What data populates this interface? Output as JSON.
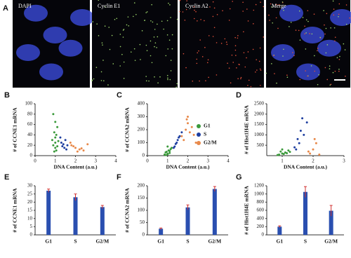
{
  "images": {
    "panel": "A",
    "labels": [
      "DAPI",
      "Cyclin E1",
      "Cyclin A2",
      "Merge"
    ]
  },
  "chart_data": [
    {
      "type": "scatter",
      "panel": "B",
      "xlabel": "DNA Content (a.u.)",
      "ylabel": "# of CCNE1 mRNA",
      "xlim": [
        0,
        4
      ],
      "xticks": [
        0,
        1,
        2,
        3,
        4
      ],
      "ylim": [
        0,
        100
      ],
      "yticks": [
        0,
        20,
        40,
        60,
        80,
        100
      ],
      "series": [
        {
          "color": "#3b9a3b",
          "x": [
            0.9,
            1.0,
            1.1,
            0.95,
            1.05,
            1.0,
            0.85,
            1.15,
            1.0,
            0.9,
            1.1,
            1.0,
            1.05,
            0.95
          ],
          "values": [
            80,
            65,
            55,
            45,
            40,
            35,
            30,
            28,
            25,
            20,
            18,
            15,
            10,
            8
          ]
        },
        {
          "color": "#1f3fa0",
          "x": [
            1.3,
            1.4,
            1.5,
            1.35,
            1.6,
            1.45,
            1.55,
            1.25
          ],
          "values": [
            25,
            22,
            30,
            18,
            20,
            15,
            12,
            35
          ]
        },
        {
          "color": "#e8894a",
          "x": [
            1.8,
            2.0,
            2.2,
            1.9,
            2.4,
            2.1,
            2.6,
            1.75,
            2.3
          ],
          "values": [
            20,
            15,
            12,
            18,
            10,
            8,
            22,
            25,
            14
          ]
        }
      ]
    },
    {
      "type": "scatter",
      "panel": "C",
      "xlabel": "DNA Content (a.u.)",
      "ylabel": "# of CCNA2 mRNA",
      "xlim": [
        0,
        4
      ],
      "xticks": [
        0,
        1,
        2,
        3,
        4
      ],
      "ylim": [
        0,
        400
      ],
      "yticks": [
        0,
        100,
        200,
        300,
        400
      ],
      "legend": "right",
      "series": [
        {
          "name": "G1",
          "color": "#3b9a3b",
          "x": [
            0.9,
            1.0,
            1.1,
            0.95,
            1.05,
            1.0,
            0.85,
            1.15,
            1.2,
            0.9,
            1.1,
            1.0
          ],
          "values": [
            5,
            10,
            20,
            30,
            40,
            15,
            8,
            50,
            60,
            25,
            35,
            70
          ]
        },
        {
          "name": "S",
          "color": "#1f3fa0",
          "x": [
            1.3,
            1.4,
            1.5,
            1.6,
            1.45,
            1.7,
            1.35,
            1.55
          ],
          "values": [
            60,
            90,
            120,
            150,
            100,
            180,
            70,
            140
          ]
        },
        {
          "name": "G2/M",
          "color": "#e8894a",
          "x": [
            1.7,
            1.9,
            2.0,
            2.1,
            2.2,
            1.8,
            2.3,
            2.0,
            1.95,
            2.4
          ],
          "values": [
            150,
            200,
            250,
            180,
            220,
            120,
            160,
            300,
            280,
            100
          ]
        }
      ]
    },
    {
      "type": "scatter",
      "panel": "D",
      "xlabel": "DNA Content (a.u.)",
      "ylabel": "# of Hist1H4E mRNA",
      "xlim": [
        0.5,
        3
      ],
      "xticks": [
        1,
        2,
        3
      ],
      "ylim": [
        0,
        2500
      ],
      "yticks": [
        500,
        1000,
        1500,
        2000,
        2500
      ],
      "series": [
        {
          "color": "#3b9a3b",
          "x": [
            0.9,
            1.0,
            1.1,
            0.95,
            1.05,
            1.2,
            0.85,
            1.15,
            1.0,
            1.25
          ],
          "values": [
            50,
            100,
            150,
            200,
            80,
            250,
            30,
            120,
            300,
            180
          ]
        },
        {
          "color": "#1f3fa0",
          "x": [
            1.4,
            1.5,
            1.6,
            1.7,
            1.55,
            1.8,
            1.45,
            1.65
          ],
          "values": [
            400,
            800,
            1200,
            1000,
            600,
            1600,
            300,
            1800
          ]
        },
        {
          "color": "#e8894a",
          "x": [
            1.9,
            2.0,
            2.1,
            1.85,
            2.05,
            2.2
          ],
          "values": [
            100,
            300,
            600,
            200,
            800,
            50
          ]
        }
      ]
    },
    {
      "type": "bar",
      "panel": "E",
      "ylabel": "# of CCNE1 mRNA",
      "categories": [
        "G1",
        "S",
        "G2/M"
      ],
      "values": [
        27,
        23,
        17
      ],
      "errors": [
        1,
        2,
        1
      ],
      "color": "#2a4fb0",
      "error_color": "#d03030",
      "ylim": [
        0,
        30
      ],
      "yticks": [
        0,
        5,
        10,
        15,
        20,
        25,
        30
      ]
    },
    {
      "type": "bar",
      "panel": "F",
      "ylabel": "# of CCNA2 mRNA",
      "categories": [
        "G1",
        "S",
        "G2/M"
      ],
      "values": [
        25,
        112,
        187
      ],
      "errors": [
        3,
        10,
        10
      ],
      "color": "#2a4fb0",
      "error_color": "#d03030",
      "ylim": [
        0,
        200
      ],
      "yticks": [
        0,
        50,
        100,
        150,
        200
      ]
    },
    {
      "type": "bar",
      "panel": "G",
      "ylabel": "# of Hist1H4E mRNA",
      "categories": [
        "G1",
        "S",
        "G2/M"
      ],
      "values": [
        200,
        1050,
        590
      ],
      "errors": [
        20,
        130,
        130
      ],
      "color": "#2a4fb0",
      "error_color": "#d03030",
      "ylim": [
        0,
        1200
      ],
      "yticks": [
        0,
        200,
        400,
        600,
        800,
        1000,
        1200
      ]
    }
  ]
}
